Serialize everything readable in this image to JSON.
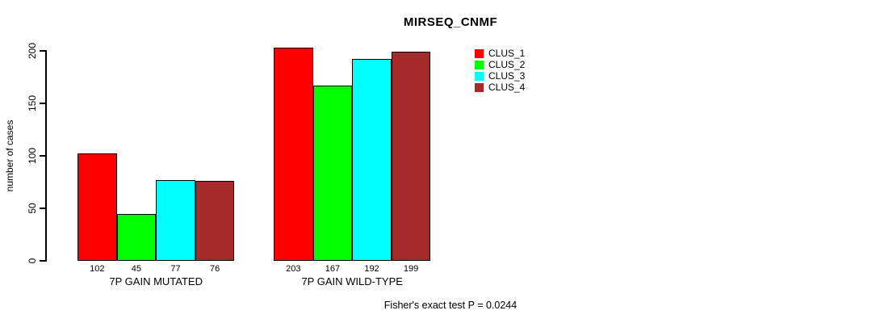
{
  "chart_data": {
    "type": "bar",
    "title": "MIRSEQ_CNMF",
    "ylabel": "number of cases",
    "xlabel": "",
    "ylim": [
      0,
      200
    ],
    "yticks": [
      0,
      50,
      100,
      150,
      200
    ],
    "categories": [
      "7P GAIN MUTATED",
      "7P GAIN WILD-TYPE"
    ],
    "series": [
      {
        "name": "CLUS_1",
        "color": "#ff0000",
        "values": [
          102,
          203
        ]
      },
      {
        "name": "CLUS_2",
        "color": "#00ff00",
        "values": [
          45,
          167
        ]
      },
      {
        "name": "CLUS_3",
        "color": "#00ffff",
        "values": [
          77,
          192
        ]
      },
      {
        "name": "CLUS_4",
        "color": "#a52a2a",
        "values": [
          76,
          199
        ]
      }
    ],
    "bar_value_labels": true,
    "legend_position": "top-right",
    "grid": false,
    "annotation": "Fisher's exact test P = 0.0244"
  }
}
